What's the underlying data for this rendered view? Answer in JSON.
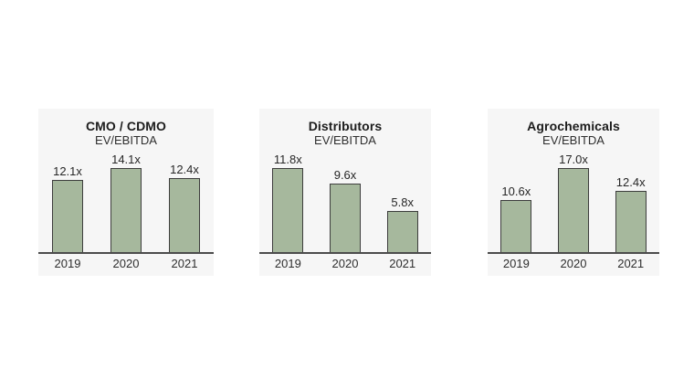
{
  "page": {
    "background": "#ffffff",
    "panel_background": "#f6f6f6",
    "text_color": "#262626",
    "axis_color": "#4c4c4c"
  },
  "chart_data": [
    {
      "type": "bar",
      "title": "CMO / CDMO",
      "subtitle": "EV/EBITDA",
      "categories": [
        "2019",
        "2020",
        "2021"
      ],
      "values": [
        12.1,
        14.1,
        12.4
      ],
      "value_labels": [
        "12.1x",
        "14.1x",
        "12.4x"
      ],
      "bar_color": "#a6b89d",
      "bar_border_color": "#3d3d3d",
      "ylim": [
        0,
        14.1
      ],
      "grid": false,
      "legend": false,
      "value_labels_position": "above-bar"
    },
    {
      "type": "bar",
      "title": "Distributors",
      "subtitle": "EV/EBITDA",
      "categories": [
        "2019",
        "2020",
        "2021"
      ],
      "values": [
        11.8,
        9.6,
        5.8
      ],
      "value_labels": [
        "11.8x",
        "9.6x",
        "5.8x"
      ],
      "bar_color": "#a6b89d",
      "bar_border_color": "#3d3d3d",
      "ylim": [
        0,
        11.8
      ],
      "grid": false,
      "legend": false,
      "value_labels_position": "above-bar"
    },
    {
      "type": "bar",
      "title": "Agrochemicals",
      "subtitle": "EV/EBITDA",
      "categories": [
        "2019",
        "2020",
        "2021"
      ],
      "values": [
        10.6,
        17.0,
        12.4
      ],
      "value_labels": [
        "10.6x",
        "17.0x",
        "12.4x"
      ],
      "bar_color": "#a6b89d",
      "bar_border_color": "#3d3d3d",
      "ylim": [
        0,
        17.0
      ],
      "grid": false,
      "legend": false,
      "value_labels_position": "above-bar"
    }
  ]
}
